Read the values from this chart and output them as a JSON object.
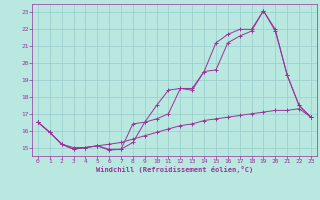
{
  "xlabel": "Windchill (Refroidissement éolien,°C)",
  "bg_color": "#b8e8e0",
  "grid_color": "#99cccc",
  "line_color": "#993399",
  "xlim": [
    -0.5,
    23.5
  ],
  "ylim": [
    14.5,
    23.5
  ],
  "xticks": [
    0,
    1,
    2,
    3,
    4,
    5,
    6,
    7,
    8,
    9,
    10,
    11,
    12,
    13,
    14,
    15,
    16,
    17,
    18,
    19,
    20,
    21,
    22,
    23
  ],
  "yticks": [
    15,
    16,
    17,
    18,
    19,
    20,
    21,
    22,
    23
  ],
  "line1_x": [
    0,
    1,
    2,
    3,
    4,
    5,
    6,
    7,
    8,
    9,
    10,
    11,
    12,
    13,
    14,
    15,
    16,
    17,
    18,
    19,
    20,
    21,
    22,
    23
  ],
  "line1_y": [
    16.5,
    15.9,
    15.2,
    14.9,
    15.0,
    15.1,
    14.9,
    14.9,
    15.3,
    16.5,
    16.7,
    17.0,
    18.5,
    18.4,
    19.5,
    19.6,
    21.2,
    21.6,
    21.9,
    23.1,
    21.9,
    19.3,
    17.5,
    16.8
  ],
  "line2_x": [
    0,
    1,
    2,
    3,
    4,
    5,
    6,
    7,
    8,
    9,
    10,
    11,
    12,
    13,
    14,
    15,
    16,
    17,
    18,
    19,
    20,
    21,
    22,
    23
  ],
  "line2_y": [
    16.5,
    15.9,
    15.2,
    15.0,
    15.0,
    15.1,
    15.2,
    15.3,
    15.5,
    15.7,
    15.9,
    16.1,
    16.3,
    16.4,
    16.6,
    16.7,
    16.8,
    16.9,
    17.0,
    17.1,
    17.2,
    17.2,
    17.3,
    16.8
  ],
  "line3_x": [
    0,
    1,
    2,
    3,
    4,
    5,
    6,
    7,
    8,
    9,
    10,
    11,
    12,
    13,
    14,
    15,
    16,
    17,
    18,
    19,
    20,
    21,
    22,
    23
  ],
  "line3_y": [
    16.5,
    15.9,
    15.2,
    14.9,
    15.0,
    15.1,
    14.85,
    14.9,
    16.4,
    16.5,
    17.5,
    18.4,
    18.5,
    18.5,
    19.5,
    21.2,
    21.7,
    22.0,
    22.0,
    23.1,
    22.0,
    19.3,
    17.5,
    16.8
  ]
}
